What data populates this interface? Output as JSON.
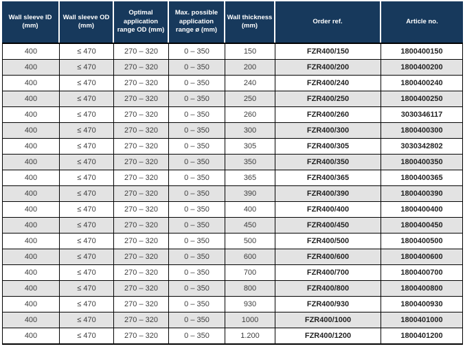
{
  "table": {
    "columns": [
      "Wall sleeve ID (mm)",
      "Wall sleeve OD (mm)",
      "Optimal application range OD (mm)",
      "Max. possible application range ø (mm)",
      "Wall thickness (mm)",
      "Order ref.",
      "Article no."
    ],
    "rows": [
      [
        "400",
        "≤ 470",
        "270 – 320",
        "0 – 350",
        "150",
        "FZR400/150",
        "1800400150"
      ],
      [
        "400",
        "≤ 470",
        "270 – 320",
        "0 – 350",
        "200",
        "FZR400/200",
        "1800400200"
      ],
      [
        "400",
        "≤ 470",
        "270 – 320",
        "0 – 350",
        "240",
        "FZR400/240",
        "1800400240"
      ],
      [
        "400",
        "≤ 470",
        "270 – 320",
        "0 – 350",
        "250",
        "FZR400/250",
        "1800400250"
      ],
      [
        "400",
        "≤ 470",
        "270 – 320",
        "0 – 350",
        "260",
        "FZR400/260",
        "3030346117"
      ],
      [
        "400",
        "≤ 470",
        "270 – 320",
        "0 – 350",
        "300",
        "FZR400/300",
        "1800400300"
      ],
      [
        "400",
        "≤ 470",
        "270 – 320",
        "0 – 350",
        "305",
        "FZR400/305",
        "3030342802"
      ],
      [
        "400",
        "≤ 470",
        "270 – 320",
        "0 – 350",
        "350",
        "FZR400/350",
        "1800400350"
      ],
      [
        "400",
        "≤ 470",
        "270 – 320",
        "0 – 350",
        "365",
        "FZR400/365",
        "1800400365"
      ],
      [
        "400",
        "≤ 470",
        "270 – 320",
        "0 – 350",
        "390",
        "FZR400/390",
        "1800400390"
      ],
      [
        "400",
        "≤ 470",
        "270 – 320",
        "0 – 350",
        "400",
        "FZR400/400",
        "1800400400"
      ],
      [
        "400",
        "≤ 470",
        "270 – 320",
        "0 – 350",
        "450",
        "FZR400/450",
        "1800400450"
      ],
      [
        "400",
        "≤ 470",
        "270 – 320",
        "0 – 350",
        "500",
        "FZR400/500",
        "1800400500"
      ],
      [
        "400",
        "≤ 470",
        "270 – 320",
        "0 – 350",
        "600",
        "FZR400/600",
        "1800400600"
      ],
      [
        "400",
        "≤ 470",
        "270 – 320",
        "0 – 350",
        "700",
        "FZR400/700",
        "1800400700"
      ],
      [
        "400",
        "≤ 470",
        "270 – 320",
        "0 – 350",
        "800",
        "FZR400/800",
        "1800400800"
      ],
      [
        "400",
        "≤ 470",
        "270 – 320",
        "0 – 350",
        "930",
        "FZR400/930",
        "1800400930"
      ],
      [
        "400",
        "≤ 470",
        "270 – 320",
        "0 – 350",
        "1000",
        "FZR400/1000",
        "1800401000"
      ],
      [
        "400",
        "≤ 470",
        "270 – 320",
        "0 – 350",
        "1.200",
        "FZR400/1200",
        "1800401200"
      ]
    ],
    "colors": {
      "header_bg": "#17395c",
      "header_text": "#ffffff",
      "row_bg": "#ffffff",
      "row_alt_bg": "#e3e3e3",
      "border": "#000000",
      "body_text": "#3d3d3d",
      "bold_text": "#222222",
      "page_bg": "#ffffff"
    }
  }
}
